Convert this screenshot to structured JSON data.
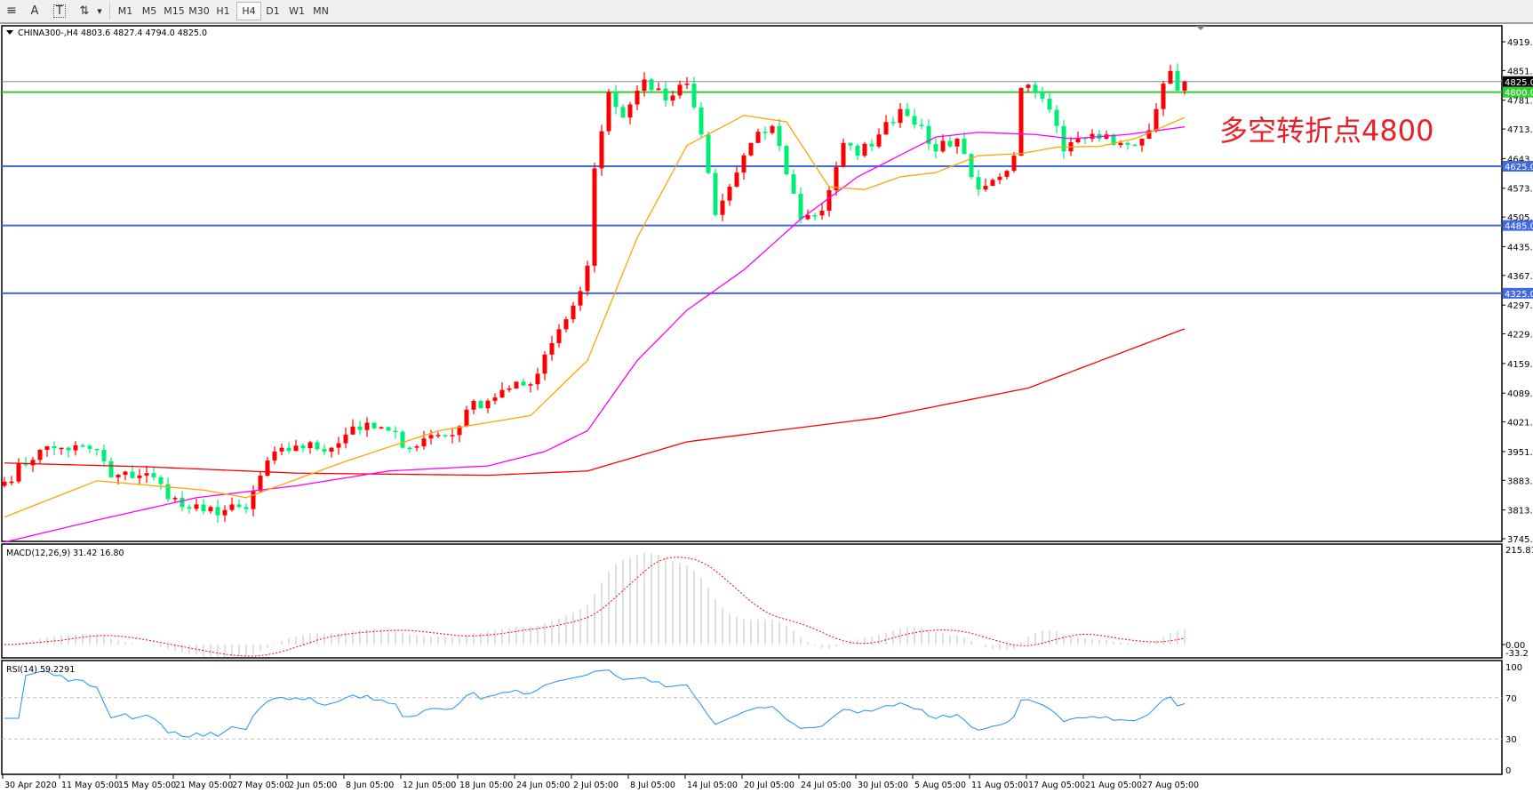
{
  "toolbar": {
    "tools": [
      {
        "name": "hline-tool",
        "glyph": "≡"
      },
      {
        "name": "text-tool",
        "glyph": "A"
      },
      {
        "name": "text-label-tool",
        "glyph": "T"
      },
      {
        "name": "arrows-tool",
        "glyph": "⇅"
      }
    ],
    "timeframes": [
      "M1",
      "M5",
      "M15",
      "M30",
      "H1",
      "H4",
      "D1",
      "W1",
      "MN"
    ],
    "selected_timeframe": "H4"
  },
  "chart": {
    "header": "CHINA300-,H4  4803.6 4827.4 4794.0 4825.0",
    "symbol": "CHINA300-",
    "timeframe": "H4",
    "last_bar": {
      "open": 4803.6,
      "high": 4827.4,
      "low": 4794.0,
      "close": 4825.0
    },
    "annotation": "多空转折点4800",
    "colors": {
      "up": "#ff0000",
      "down": "#00ee76",
      "ma_fast": "#ffa500",
      "ma_mid": "#ff00ff",
      "ma_slow": "#ff0000",
      "annotation": "#e8202a",
      "rsi": "#1e90ff",
      "macd_hist": "#c0c0c0",
      "macd_signal": "#ff0000"
    },
    "price_axis": {
      "min": 3745.0,
      "max": 4919.0,
      "ticks": [
        "4919.0",
        "4851.0",
        "4781.0",
        "4713.0",
        "4643.0",
        "4573.0",
        "4505.0",
        "4435.0",
        "4367.0",
        "4297.0",
        "4229.0",
        "4159.0",
        "4089.0",
        "4021.0",
        "3951.0",
        "3883.0",
        "3813.0",
        "3745.0"
      ]
    },
    "hlines": [
      {
        "price": 4825.0,
        "label": "4825.0",
        "color": "#808890",
        "tag_bg": "#000000"
      },
      {
        "price": 4800.0,
        "label": "4800.0",
        "color": "#32cd32",
        "tag_bg": "#32cd32"
      },
      {
        "price": 4625.0,
        "label": "4625.0",
        "color": "#4169e1",
        "tag_bg": "#4169e1"
      },
      {
        "price": 4485.0,
        "label": "4485.0",
        "color": "#4169e1",
        "tag_bg": "#4169e1"
      },
      {
        "price": 4325.0,
        "label": "4325.0",
        "color": "#4169e1",
        "tag_bg": "#4169e1"
      }
    ],
    "time_labels": [
      "30 Apr 2020",
      "11 May 05:00",
      "15 May 05:00",
      "21 May 05:00",
      "27 May 05:00",
      "2 Jun 05:00",
      "8 Jun 05:00",
      "12 Jun 05:00",
      "18 Jun 05:00",
      "24 Jun 05:00",
      "2 Jul 05:00",
      "8 Jul 05:00",
      "14 Jul 05:00",
      "20 Jul 05:00",
      "24 Jul 05:00",
      "30 Jul 05:00",
      "5 Aug 05:00",
      "11 Aug 05:00",
      "17 Aug 05:00",
      "21 Aug 05:00",
      "27 Aug 05:00"
    ],
    "close_path": [
      [
        0,
        3880
      ],
      [
        5,
        3955
      ],
      [
        8,
        3960
      ],
      [
        13,
        3955
      ],
      [
        15,
        3890
      ],
      [
        20,
        3900
      ],
      [
        25,
        3820
      ],
      [
        28,
        3810
      ],
      [
        34,
        3815
      ],
      [
        37,
        3930
      ],
      [
        41,
        3965
      ],
      [
        46,
        3960
      ],
      [
        49,
        4010
      ],
      [
        54,
        4000
      ],
      [
        57,
        3960
      ],
      [
        60,
        3990
      ],
      [
        63,
        3990
      ],
      [
        65,
        4050
      ],
      [
        71,
        4100
      ],
      [
        74,
        4110
      ],
      [
        76,
        4180
      ],
      [
        78,
        4240
      ],
      [
        81,
        4330
      ],
      [
        82,
        4390
      ],
      [
        83,
        4620
      ],
      [
        85,
        4800
      ],
      [
        87,
        4740
      ],
      [
        90,
        4830
      ],
      [
        93,
        4780
      ],
      [
        96,
        4820
      ],
      [
        98,
        4700
      ],
      [
        100,
        4510
      ],
      [
        103,
        4610
      ],
      [
        105,
        4680
      ],
      [
        108,
        4720
      ],
      [
        111,
        4560
      ],
      [
        112,
        4500
      ],
      [
        115,
        4520
      ],
      [
        118,
        4680
      ],
      [
        120,
        4650
      ],
      [
        123,
        4700
      ],
      [
        126,
        4760
      ],
      [
        129,
        4720
      ],
      [
        131,
        4660
      ],
      [
        134,
        4690
      ],
      [
        137,
        4570
      ],
      [
        140,
        4600
      ],
      [
        142,
        4650
      ],
      [
        143,
        4810
      ],
      [
        145,
        4800
      ],
      [
        148,
        4720
      ],
      [
        149,
        4660
      ],
      [
        152,
        4690
      ],
      [
        155,
        4700
      ],
      [
        157,
        4680
      ],
      [
        160,
        4690
      ],
      [
        162,
        4760
      ],
      [
        163,
        4820
      ],
      [
        164,
        4850
      ],
      [
        165,
        4803.6
      ],
      [
        166,
        4825.0
      ]
    ],
    "ma_fast_path": [
      [
        0,
        3796
      ],
      [
        13,
        3882
      ],
      [
        28,
        3860
      ],
      [
        34,
        3842
      ],
      [
        48,
        3928
      ],
      [
        61,
        4000
      ],
      [
        74,
        4036
      ],
      [
        82,
        4166
      ],
      [
        89,
        4456
      ],
      [
        96,
        4674
      ],
      [
        104,
        4745
      ],
      [
        110,
        4730
      ],
      [
        116,
        4576
      ],
      [
        121,
        4570
      ],
      [
        126,
        4600
      ],
      [
        131,
        4610
      ],
      [
        137,
        4650
      ],
      [
        143,
        4655
      ],
      [
        148,
        4670
      ],
      [
        154,
        4672
      ],
      [
        159,
        4690
      ],
      [
        166,
        4740
      ]
    ],
    "ma_mid_path": [
      [
        0,
        3737
      ],
      [
        13,
        3789
      ],
      [
        27,
        3842
      ],
      [
        41,
        3870
      ],
      [
        54,
        3905
      ],
      [
        68,
        3917
      ],
      [
        76,
        3951
      ],
      [
        82,
        4000
      ],
      [
        89,
        4166
      ],
      [
        96,
        4285
      ],
      [
        104,
        4380
      ],
      [
        112,
        4500
      ],
      [
        120,
        4600
      ],
      [
        131,
        4694
      ],
      [
        137,
        4705
      ],
      [
        145,
        4700
      ],
      [
        150,
        4690
      ],
      [
        158,
        4700
      ],
      [
        166,
        4718
      ]
    ],
    "ma_slow_path": [
      [
        0,
        3924
      ],
      [
        20,
        3915
      ],
      [
        41,
        3900
      ],
      [
        68,
        3895
      ],
      [
        82,
        3905
      ],
      [
        96,
        3974
      ],
      [
        123,
        4031
      ],
      [
        144,
        4101
      ],
      [
        166,
        4241
      ]
    ]
  },
  "macd": {
    "label": "MACD(12,26,9) 31.42 16.80",
    "scale_top": "215.81",
    "zero": "0.00",
    "scale_bottom": "-33.2",
    "max": 215.81,
    "min": -33.2
  },
  "rsi": {
    "label": "RSI(14) 59.2291",
    "ticks": [
      "100",
      "70",
      "30",
      "0"
    ],
    "levels": [
      70,
      30
    ]
  }
}
